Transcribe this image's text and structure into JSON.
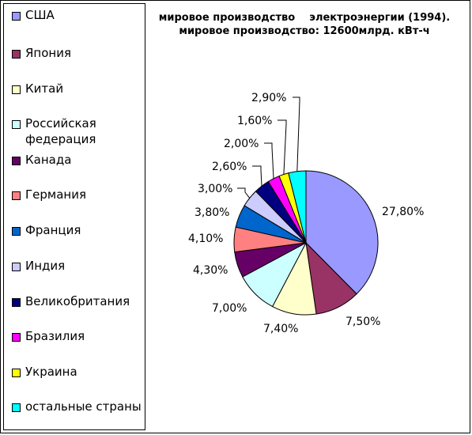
{
  "chart_data": {
    "type": "pie",
    "title_line1": "мировое производство    электроэнергии (1994).",
    "title_line2": "мировое производство: 12600млрд. кВт-ч",
    "legend_placement": "left",
    "slices": [
      {
        "name": "США",
        "value": 27.8,
        "label": "27,80%",
        "color": "#9999ff"
      },
      {
        "name": "Япония",
        "value": 7.5,
        "label": "7,50%",
        "color": "#993366"
      },
      {
        "name": "Китай",
        "value": 7.4,
        "label": "7,40%",
        "color": "#ffffcc"
      },
      {
        "name": "Российская федерация",
        "value": 7.0,
        "label": "7,00%",
        "color": "#ccffff"
      },
      {
        "name": "Канада",
        "value": 4.3,
        "label": "4,30%",
        "color": "#660066"
      },
      {
        "name": "Германия",
        "value": 4.1,
        "label": "4,10%",
        "color": "#ff8080"
      },
      {
        "name": "Франция",
        "value": 3.8,
        "label": "3,80%",
        "color": "#0066cc"
      },
      {
        "name": "Индия",
        "value": 3.0,
        "label": "3,00%",
        "color": "#ccccff"
      },
      {
        "name": "Великобритания",
        "value": 2.6,
        "label": "2,60%",
        "color": "#000080"
      },
      {
        "name": "Бразилия",
        "value": 2.0,
        "label": "2,00%",
        "color": "#ff00ff"
      },
      {
        "name": "Украина",
        "value": 1.6,
        "label": "1,60%",
        "color": "#ffff00"
      },
      {
        "name": "остальные страны",
        "value": 2.9,
        "label": "2,90%",
        "color": "#00ffff"
      }
    ]
  }
}
